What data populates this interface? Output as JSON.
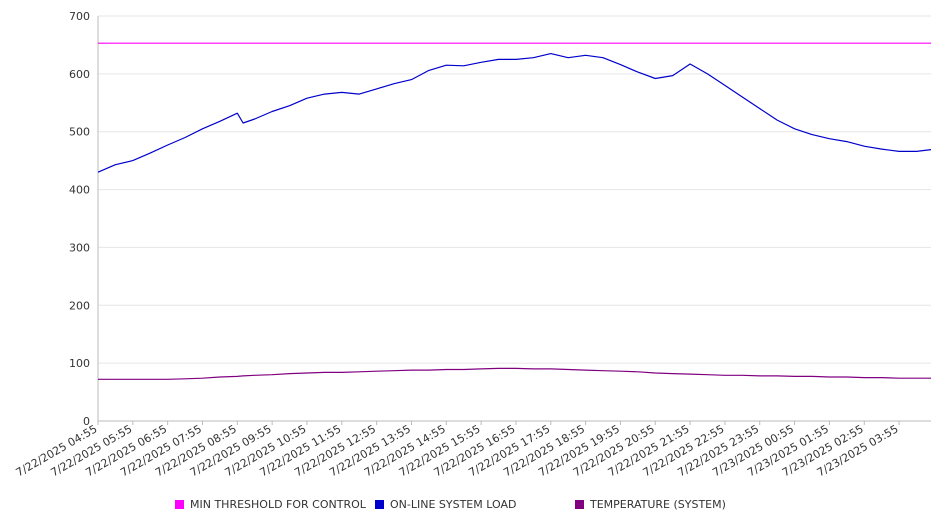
{
  "chart_data": {
    "type": "line",
    "title": "",
    "xlabel": "",
    "ylabel": "",
    "ylim": [
      0,
      700
    ],
    "yticks": [
      0,
      100,
      200,
      300,
      400,
      500,
      600,
      700
    ],
    "grid": true,
    "legend_position": "bottom",
    "x_tick_labels": [
      "7/22/2025 04:55",
      "7/22/2025 05:55",
      "7/22/2025 06:55",
      "7/22/2025 07:55",
      "7/22/2025 08:55",
      "7/22/2025 09:55",
      "7/22/2025 10:55",
      "7/22/2025 11:55",
      "7/22/2025 12:55",
      "7/22/2025 13:55",
      "7/22/2025 14:55",
      "7/22/2025 15:55",
      "7/22/2025 16:55",
      "7/22/2025 17:55",
      "7/22/2025 18:55",
      "7/22/2025 19:55",
      "7/22/2025 20:55",
      "7/22/2025 21:55",
      "7/22/2025 22:55",
      "7/22/2025 23:55",
      "7/23/2025 00:55",
      "7/23/2025 01:55",
      "7/23/2025 02:55",
      "7/23/2025 03:55"
    ],
    "x": [
      "7/22/2025 04:55",
      "7/22/2025 05:25",
      "7/22/2025 05:55",
      "7/22/2025 06:25",
      "7/22/2025 06:55",
      "7/22/2025 07:25",
      "7/22/2025 07:55",
      "7/22/2025 08:25",
      "7/22/2025 08:55",
      "7/22/2025 09:05",
      "7/22/2025 09:25",
      "7/22/2025 09:55",
      "7/22/2025 10:25",
      "7/22/2025 10:55",
      "7/22/2025 11:25",
      "7/22/2025 11:55",
      "7/22/2025 12:25",
      "7/22/2025 12:55",
      "7/22/2025 13:25",
      "7/22/2025 13:55",
      "7/22/2025 14:25",
      "7/22/2025 14:55",
      "7/22/2025 15:25",
      "7/22/2025 15:55",
      "7/22/2025 16:25",
      "7/22/2025 16:55",
      "7/22/2025 17:25",
      "7/22/2025 17:55",
      "7/22/2025 18:25",
      "7/22/2025 18:55",
      "7/22/2025 19:25",
      "7/22/2025 19:55",
      "7/22/2025 20:25",
      "7/22/2025 20:55",
      "7/22/2025 21:25",
      "7/22/2025 21:55",
      "7/22/2025 22:25",
      "7/22/2025 22:55",
      "7/22/2025 23:25",
      "7/22/2025 23:55",
      "7/23/2025 00:25",
      "7/23/2025 00:55",
      "7/23/2025 01:25",
      "7/23/2025 01:55",
      "7/23/2025 02:25",
      "7/23/2025 02:55",
      "7/23/2025 03:25",
      "7/23/2025 03:55",
      "7/23/2025 04:25",
      "7/23/2025 04:50"
    ],
    "series": [
      {
        "name": "MIN THRESHOLD FOR CONTROL",
        "color": "#ff00ff",
        "values": [
          653,
          653,
          653,
          653,
          653,
          653,
          653,
          653,
          653,
          653,
          653,
          653,
          653,
          653,
          653,
          653,
          653,
          653,
          653,
          653,
          653,
          653,
          653,
          653,
          653,
          653,
          653,
          653,
          653,
          653,
          653,
          653,
          653,
          653,
          653,
          653,
          653,
          653,
          653,
          653,
          653,
          653,
          653,
          653,
          653,
          653,
          653,
          653,
          653,
          653
        ]
      },
      {
        "name": "ON-LINE SYSTEM LOAD",
        "color": "#0000cc",
        "values": [
          430,
          443,
          450,
          463,
          477,
          490,
          505,
          518,
          532,
          515,
          522,
          535,
          545,
          558,
          565,
          568,
          565,
          574,
          583,
          590,
          606,
          615,
          614,
          620,
          625,
          625,
          628,
          635,
          628,
          632,
          628,
          616,
          603,
          592,
          597,
          617,
          600,
          580,
          560,
          540,
          520,
          505,
          495,
          488,
          483,
          475,
          470,
          466,
          466,
          469
        ]
      },
      {
        "name": "TEMPERATURE (SYSTEM)",
        "color": "#800080",
        "values": [
          72,
          72,
          72,
          72,
          72,
          73,
          74,
          76,
          77,
          78,
          79,
          80,
          82,
          83,
          84,
          84,
          85,
          86,
          87,
          88,
          88,
          89,
          89,
          90,
          91,
          91,
          90,
          90,
          89,
          88,
          87,
          86,
          85,
          83,
          82,
          81,
          80,
          79,
          79,
          78,
          78,
          77,
          77,
          76,
          76,
          75,
          75,
          74,
          74,
          74
        ]
      }
    ]
  }
}
